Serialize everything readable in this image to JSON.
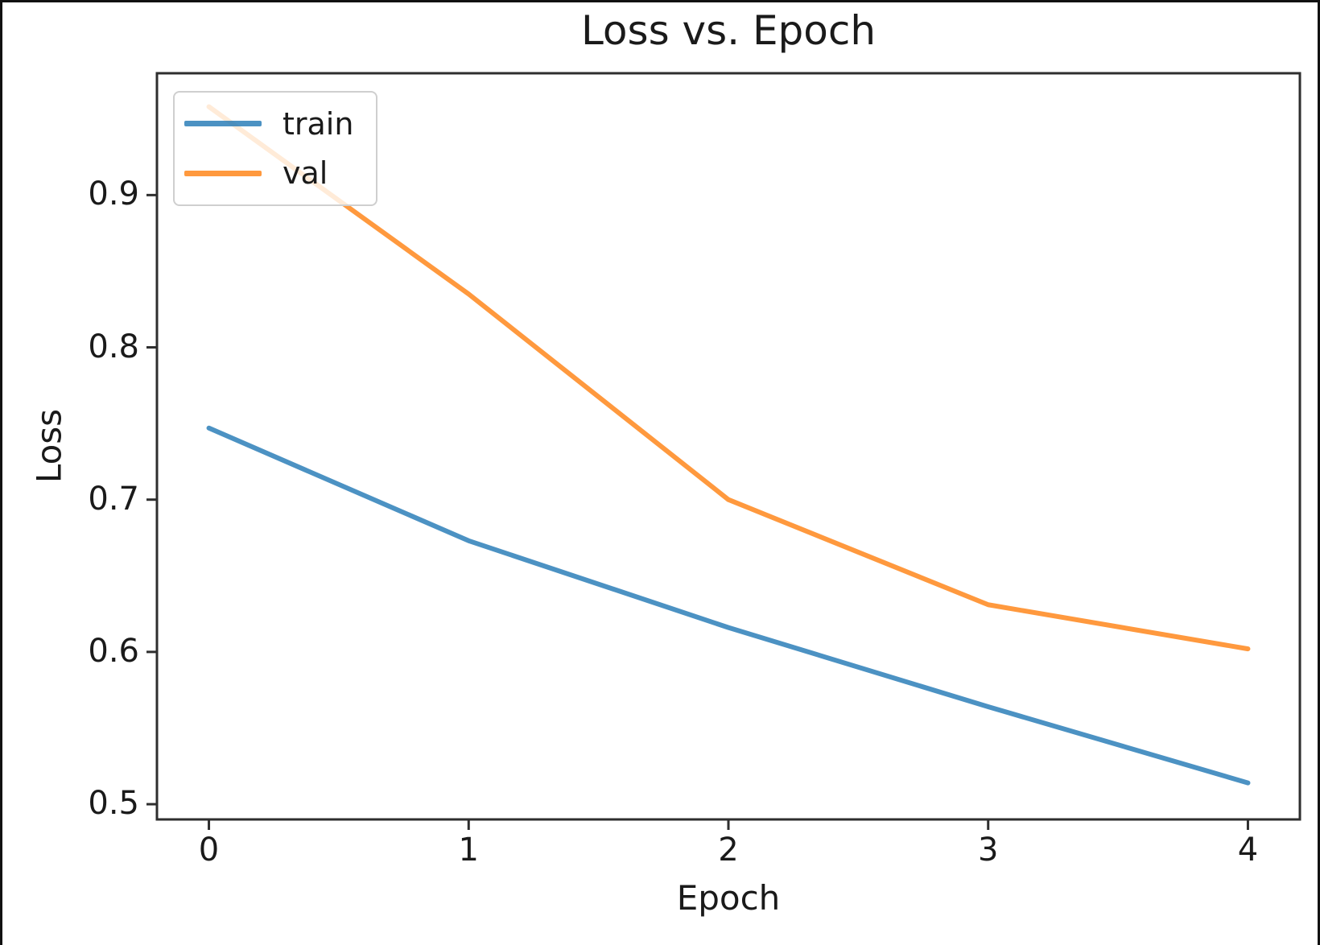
{
  "chart_data": {
    "type": "line",
    "title": "Loss vs. Epoch",
    "xlabel": "Epoch",
    "ylabel": "Loss",
    "x": [
      0,
      1,
      2,
      3,
      4
    ],
    "series": [
      {
        "name": "train",
        "color": "#1f77b4",
        "values": [
          0.747,
          0.673,
          0.616,
          0.564,
          0.514
        ]
      },
      {
        "name": "val",
        "color": "#ff7f0e",
        "values": [
          0.958,
          0.835,
          0.7,
          0.631,
          0.602
        ]
      }
    ],
    "line_alpha": 0.8,
    "line_width": 6,
    "xlim": [
      -0.2,
      4.2
    ],
    "ylim": [
      0.49,
      0.98
    ],
    "xticks": [
      "0",
      "1",
      "2",
      "3",
      "4"
    ],
    "xtick_values": [
      0,
      1,
      2,
      3,
      4
    ],
    "yticks": [
      "0.5",
      "0.6",
      "0.7",
      "0.8",
      "0.9"
    ],
    "ytick_values": [
      0.5,
      0.6,
      0.7,
      0.8,
      0.9
    ],
    "grid": false,
    "legend_position": "upper left",
    "axis_color": "#2e2e2e",
    "text_color": "#1a1a1a",
    "frame_border_color": "#111111"
  }
}
